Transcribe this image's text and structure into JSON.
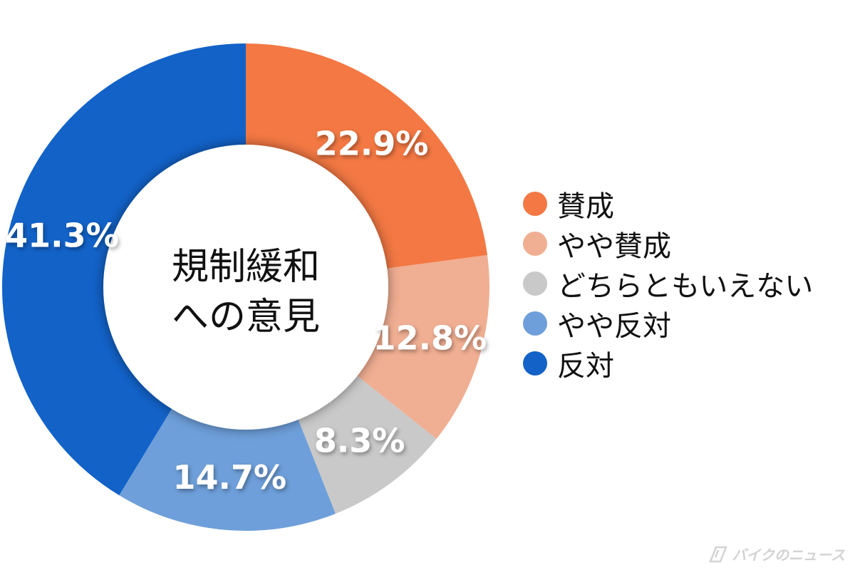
{
  "chart_data": {
    "type": "pie",
    "title": "規制緩和への意見",
    "title_lines": [
      "規制緩和",
      "への意見"
    ],
    "categories": [
      "賛成",
      "やや賛成",
      "どちらともいえない",
      "やや反対",
      "反対"
    ],
    "values": [
      22.9,
      12.8,
      8.3,
      14.7,
      41.3
    ],
    "value_labels": [
      "22.9%",
      "12.8%",
      "8.3%",
      "14.7%",
      "41.3%"
    ],
    "colors": [
      "#F37843",
      "#F0AE92",
      "#C9C9C9",
      "#6E9FDA",
      "#1262C8"
    ],
    "donut": true,
    "legend_position": "right"
  },
  "logo": {
    "text": "バイクのニュース"
  }
}
